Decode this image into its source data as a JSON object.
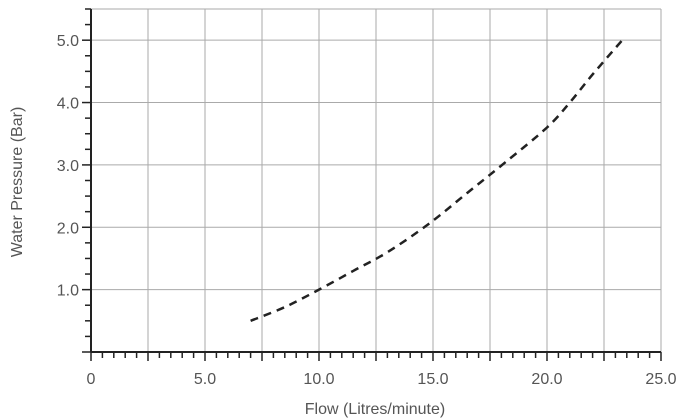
{
  "chart_data": {
    "type": "line",
    "title": "",
    "xlabel": "Flow (Litres/minute)",
    "ylabel": "Water Pressure (Bar)",
    "xlim": [
      0,
      25
    ],
    "ylim": [
      0,
      5.5
    ],
    "grid": true,
    "x_ticks": [
      {
        "value": 0,
        "label": "0"
      },
      {
        "value": 5,
        "label": "5.0"
      },
      {
        "value": 10,
        "label": "10.0"
      },
      {
        "value": 15,
        "label": "15.0"
      },
      {
        "value": 20,
        "label": "20.0"
      },
      {
        "value": 25,
        "label": "25.0"
      }
    ],
    "y_ticks": [
      {
        "value": 1,
        "label": "1.0"
      },
      {
        "value": 2,
        "label": "2.0"
      },
      {
        "value": 3,
        "label": "3.0"
      },
      {
        "value": 4,
        "label": "4.0"
      },
      {
        "value": 5,
        "label": "5.0"
      }
    ],
    "x_minor_step": 0.5,
    "y_minor_step": 0.25,
    "x_grid_step": 2.5,
    "y_grid_step": 1,
    "series": [
      {
        "line_style": "dashed",
        "color": "#222222",
        "points": [
          {
            "x": 7.0,
            "y": 0.5
          },
          {
            "x": 8.5,
            "y": 0.72
          },
          {
            "x": 10.0,
            "y": 1.0
          },
          {
            "x": 11.5,
            "y": 1.3
          },
          {
            "x": 13.0,
            "y": 1.6
          },
          {
            "x": 14.8,
            "y": 2.05
          },
          {
            "x": 16.5,
            "y": 2.55
          },
          {
            "x": 18.2,
            "y": 3.05
          },
          {
            "x": 20.0,
            "y": 3.6
          },
          {
            "x": 21.0,
            "y": 4.0
          },
          {
            "x": 22.0,
            "y": 4.45
          },
          {
            "x": 23.3,
            "y": 5.0
          }
        ]
      }
    ]
  }
}
